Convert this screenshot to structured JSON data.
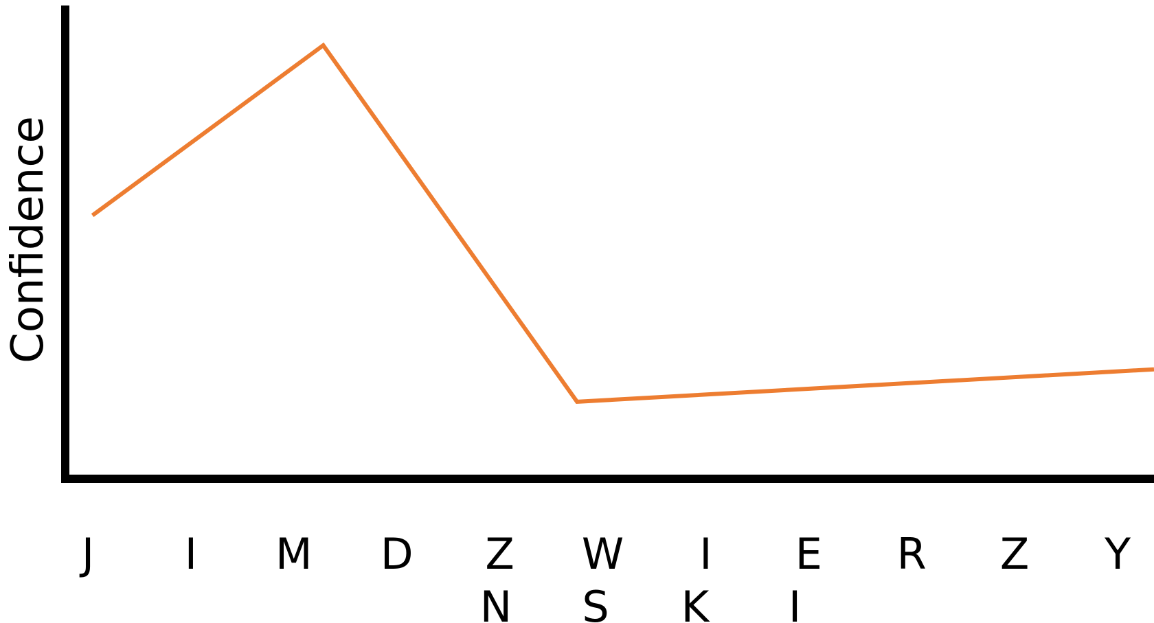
{
  "chart_data": {
    "type": "line",
    "title": "",
    "xlabel": "",
    "ylabel": "Confidence",
    "grid": false,
    "categories": [
      "J",
      "I",
      "M",
      "D",
      "Z",
      "W",
      "I",
      "E",
      "R",
      "Z",
      "Y"
    ],
    "secondary_labels": [
      "N",
      "S",
      "K",
      "I"
    ],
    "series": [
      {
        "x": [
          0,
          2,
          4.2,
          9.2
        ],
        "values": [
          0.58,
          1.0,
          0.12,
          0.2
        ],
        "color": "#ed7d31"
      }
    ],
    "xlim": [
      -0.2,
      9.2
    ],
    "ylim": [
      -0.06,
      1.0
    ]
  }
}
